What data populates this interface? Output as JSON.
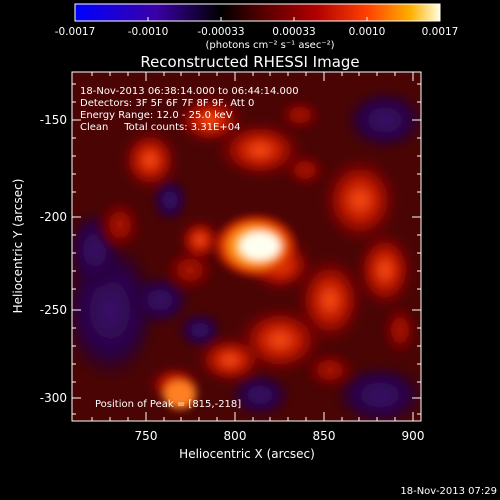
{
  "colorbar": {
    "tick_labels": [
      "-0.0017",
      "-0.0010",
      "-0.00033",
      "0.00033",
      "0.0010",
      "0.0017"
    ],
    "units_label": "(photons cm⁻² s⁻¹ asec⁻²)"
  },
  "image": {
    "title": "Reconstructed RHESSI Image",
    "info_lines": [
      "18-Nov-2013 06:38:14.000 to 06:44:14.000",
      "Detectors: 3F 5F 6F 7F 8F 9F, Att 0",
      "Energy Range: 12.0 - 25.0 keV",
      "Clean     Total counts: 3.31E+04"
    ],
    "peak_label": "Position of Peak = [815,-218]",
    "xlabel": "Heliocentric X (arcsec)",
    "ylabel": "Heliocentric Y (arcsec)",
    "x_ticks": [
      "750",
      "800",
      "850",
      "900"
    ],
    "y_ticks": [
      "-150",
      "-200",
      "-250",
      "-300"
    ],
    "timestamp": "18-Nov-2013 07:29"
  },
  "colors": {
    "background": "#000000",
    "text": "#ffffff",
    "colormap": [
      "#0000ff",
      "#3a00a8",
      "#000000",
      "#5a0000",
      "#b00000",
      "#ff4000",
      "#ffb000",
      "#ffffe0"
    ]
  }
}
